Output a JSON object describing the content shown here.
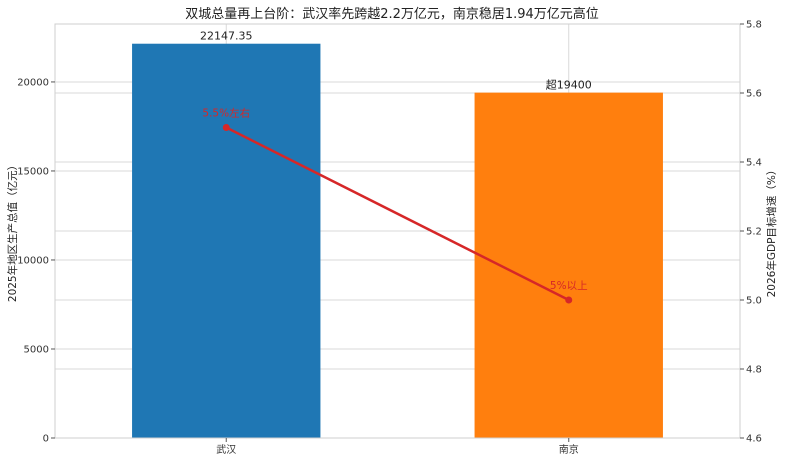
{
  "chart_data": {
    "type": "bar",
    "title": "双城总量再上台阶：武汉率先跨越2.2万亿元，南京稳居1.94万亿元高位",
    "categories": [
      "武汉",
      "南京"
    ],
    "series": [
      {
        "name": "",
        "type": "bar",
        "axis": "left",
        "values": [
          22147.35,
          19400
        ],
        "colors": [
          "#1f77b4",
          "#ff7f0e"
        ],
        "data_labels": [
          "22147.35",
          "超19400"
        ]
      },
      {
        "name": "",
        "type": "line",
        "axis": "right",
        "values": [
          5.5,
          5.0
        ],
        "color": "#d62728",
        "data_labels": [
          "5.5%左右",
          "5%以上"
        ]
      }
    ],
    "left_axis": {
      "label": "2025年地区生产总值（亿元）",
      "range": [
        0,
        23254.7
      ],
      "ticks": [
        0,
        5000,
        10000,
        15000,
        20000
      ]
    },
    "right_axis": {
      "label": "2026年GDP目标增速（%）",
      "range": [
        4.6,
        5.8
      ],
      "ticks": [
        "4.6",
        "4.8",
        "5.0",
        "5.2",
        "5.4",
        "5.6",
        "5.8"
      ]
    },
    "grid": true
  }
}
